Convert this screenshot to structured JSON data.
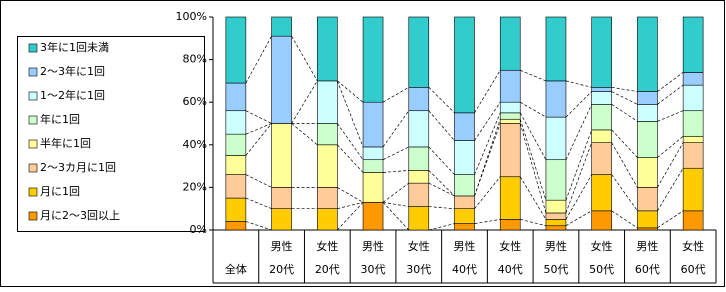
{
  "chart_data": {
    "type": "stacked_bar_100",
    "categories": [
      [
        "全体"
      ],
      [
        "男性",
        "20代"
      ],
      [
        "女性",
        "20代"
      ],
      [
        "男性",
        "30代"
      ],
      [
        "女性",
        "30代"
      ],
      [
        "男性",
        "40代"
      ],
      [
        "女性",
        "40代"
      ],
      [
        "男性",
        "50代"
      ],
      [
        "女性",
        "50代"
      ],
      [
        "男性",
        "60代"
      ],
      [
        "女性",
        "60代"
      ]
    ],
    "series": [
      {
        "name": "月に2～3回以上",
        "color": "#ff9900",
        "values": [
          4,
          0,
          0,
          13,
          0,
          3,
          5,
          2,
          9,
          1,
          9
        ]
      },
      {
        "name": "月に1回",
        "color": "#ffcc00",
        "values": [
          11,
          10,
          10,
          0,
          11,
          7,
          20,
          3,
          17,
          8,
          20
        ]
      },
      {
        "name": "2～3カ月に1回",
        "color": "#ffcc99",
        "values": [
          11,
          10,
          10,
          0,
          11,
          6,
          25,
          3,
          15,
          11,
          12
        ]
      },
      {
        "name": "半年に1回",
        "color": "#ffff99",
        "values": [
          9,
          30,
          20,
          14,
          6,
          0,
          2,
          6,
          6,
          14,
          3
        ]
      },
      {
        "name": "年に1回",
        "color": "#ccffcc",
        "values": [
          10,
          0,
          10,
          6,
          11,
          10,
          3,
          19,
          12,
          17,
          12
        ]
      },
      {
        "name": "1～2年に1回",
        "color": "#ccffff",
        "values": [
          11,
          0,
          20,
          6,
          17,
          16,
          5,
          20,
          6,
          8,
          12
        ]
      },
      {
        "name": "2～3年に1回",
        "color": "#99ccff",
        "values": [
          13,
          41,
          0,
          21,
          11,
          13,
          15,
          17,
          2,
          6,
          6
        ]
      },
      {
        "name": "3年に1回未満",
        "color": "#33cccc",
        "values": [
          31,
          9,
          30,
          40,
          33,
          45,
          25,
          30,
          33,
          35,
          26
        ]
      }
    ],
    "ylim": [
      0,
      100
    ],
    "yticks": [
      {
        "value": 0,
        "label": "0%"
      },
      {
        "value": 20,
        "label": "20%"
      },
      {
        "value": 40,
        "label": "40%"
      },
      {
        "value": 60,
        "label": "60%"
      },
      {
        "value": 80,
        "label": "80%"
      },
      {
        "value": 100,
        "label": "100%"
      }
    ],
    "legend": "left"
  }
}
